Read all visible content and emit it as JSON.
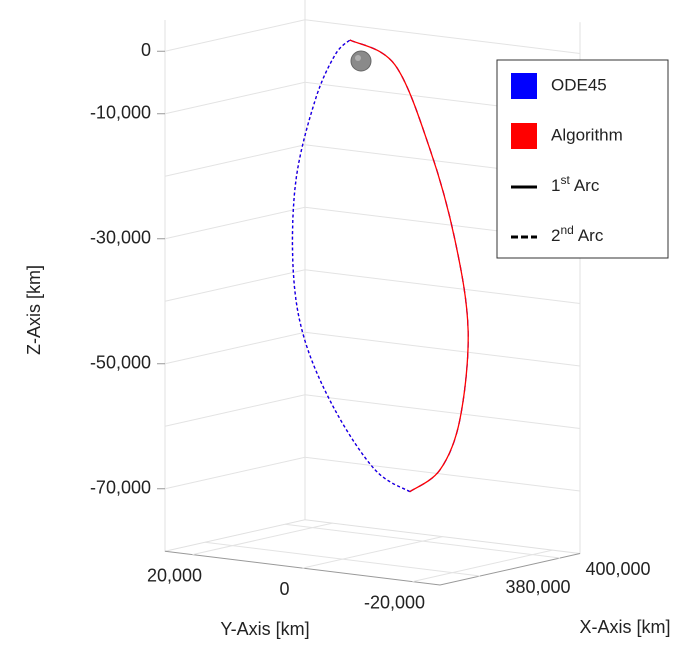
{
  "chart_data": {
    "type": "line3d",
    "xlabel": "X-Axis [km]",
    "ylabel": "Y-Axis [km]",
    "zlabel": "Z-Axis [km]",
    "xlim": [
      370000,
      405000
    ],
    "ylim": [
      -25000,
      25000
    ],
    "zlim": [
      -80000,
      5000
    ],
    "xticks": [
      {
        "value": 380000,
        "label": "380,000"
      },
      {
        "value": 400000,
        "label": "400,000"
      }
    ],
    "yticks": [
      {
        "value": 20000,
        "label": "20,000"
      },
      0,
      {
        "value": -20000,
        "label": "-20,000"
      }
    ],
    "zticks": [
      0,
      {
        "value": -10000,
        "label": "-10,000"
      },
      {
        "value": -30000,
        "label": "-30,000"
      },
      {
        "value": -50000,
        "label": "-50,000"
      },
      {
        "value": -70000,
        "label": "-70,000"
      }
    ],
    "zgrid_minor": [
      -20000,
      -40000,
      -60000
    ],
    "grid": true,
    "legend": {
      "position": "upper right"
    },
    "arc_styles": [
      {
        "number": "1",
        "suffix": "st",
        "text": "Arc",
        "dash": "solid"
      },
      {
        "number": "2",
        "suffix": "nd",
        "text": "Arc",
        "dash": "dashed"
      }
    ],
    "series": [
      {
        "name": "ODE45",
        "color": "#0000ff",
        "arcs": [
          {
            "x": [
              385000,
              385000,
              385000,
              385000,
              385000,
              385000,
              385000,
              385000
            ],
            "y": [
              2300,
              -5900,
              -12300,
              -16800,
              -19200,
              -17700,
              -14100,
              -8600
            ],
            "z": [
              2100,
              -1000,
              -13900,
              -27800,
              -42000,
              -56500,
              -64900,
              -69000
            ]
          },
          {
            "x": [
              385000,
              385000,
              385000,
              385000,
              385000,
              385000,
              385000,
              385000,
              385000
            ],
            "y": [
              -8600,
              -2300,
              5000,
              10500,
              12600,
              12100,
              8600,
              5000,
              2300
            ],
            "z": [
              -69000,
              -66200,
              -57400,
              -46800,
              -35800,
              -21400,
              -8200,
              -600,
              2100
            ]
          }
        ]
      },
      {
        "name": "Algorithm",
        "color": "#ff0000",
        "arcs": [
          {
            "x": [
              385000,
              385000,
              385000,
              385000,
              385000,
              385000,
              385000,
              385000
            ],
            "y": [
              2300,
              -5900,
              -12300,
              -16800,
              -19200,
              -17700,
              -14100,
              -8600
            ],
            "z": [
              2100,
              -1000,
              -13900,
              -27800,
              -42000,
              -56500,
              -64900,
              -69000
            ]
          },
          {
            "x": [
              385000,
              385000,
              385000,
              385000,
              385000,
              385000,
              385000,
              385000,
              385000
            ],
            "y": [
              -8600,
              -2300,
              5000,
              10500,
              12600,
              12100,
              8600,
              5000,
              2300
            ],
            "z": [
              -69000,
              -66200,
              -57400,
              -46800,
              -35800,
              -21400,
              -8200,
              -600,
              2100
            ]
          }
        ]
      }
    ]
  }
}
